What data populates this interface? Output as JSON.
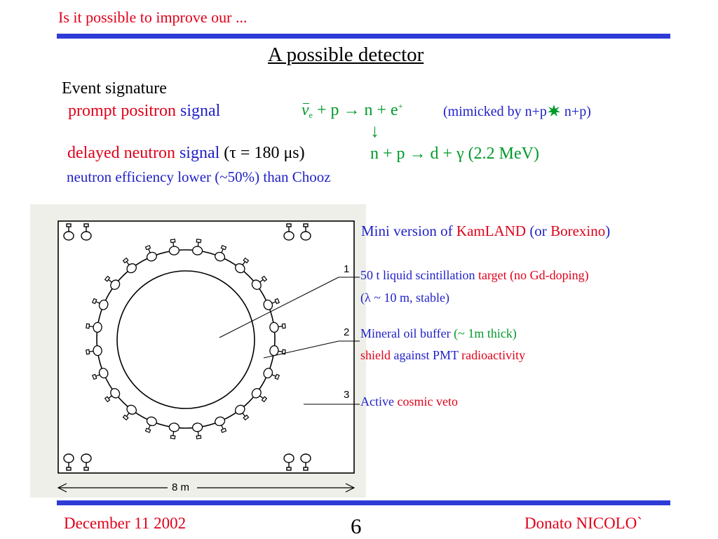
{
  "header": {
    "title": "Is it possible to improve our ...",
    "slide_title": "A possible detector"
  },
  "signature": {
    "heading": "Event signature",
    "prompt_label_red": "prompt positron",
    "prompt_label_blue": "signal",
    "delayed_label_red": "delayed  neutron",
    "delayed_label_blue": "signal",
    "delayed_tau": "(τ = 180 μs)",
    "efficiency_note": "neutron efficiency lower (~50%) than Chooz",
    "reaction1_nu": "ν",
    "reaction1_sub": "e",
    "reaction1_rest": " + p → n + e",
    "reaction1_sup": "+",
    "arrow_down": "↓",
    "reaction2": "n + p → d + γ (2.2 MeV)",
    "mimicked_prefix": "(mimicked by  n+p",
    "mimicked_suffix": " n+p)"
  },
  "diagram": {
    "label_1": "1",
    "label_2": "2",
    "label_3": "3",
    "scale_label": "8 m"
  },
  "description": {
    "mini_blue1": "Mini version of ",
    "mini_red": "KamLAND",
    "mini_blue2": " (or ",
    "mini_red2": "Borexino",
    "mini_blue3": ")",
    "item1_blue": "50 t liquid scintillation ",
    "item1_red": "target (no Gd-doping)",
    "item1b": "(λ ~ 10 m, stable)",
    "item2_blue": "Mineral oil buffer ",
    "item2_green": "(~ 1m thick)",
    "item2b_red": "shield",
    "item2b_blue": " against PMT ",
    "item2b_red2": "radioactivity",
    "item3_blue": "Active ",
    "item3_red": "cosmic veto"
  },
  "footer": {
    "date": "December 11 2002",
    "page": "6",
    "author": "Donato NICOLO`"
  },
  "colors": {
    "accent_bar": "#2f3bd6",
    "red_text": "#e0001a",
    "blue_text": "#1f1fc8",
    "green_text": "#009a2a"
  }
}
